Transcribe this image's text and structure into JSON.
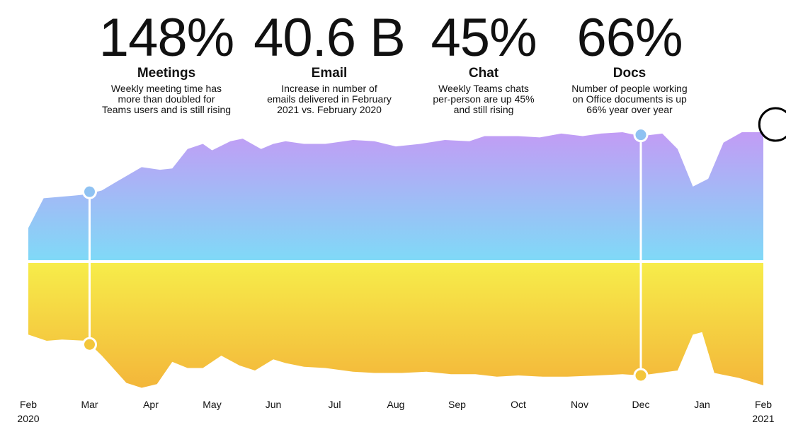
{
  "stats": [
    {
      "value": "148%",
      "label": "Meetings",
      "desc": [
        "Weekly meeting time has",
        "more than doubled for",
        "Teams users and is still rising"
      ]
    },
    {
      "value": "40.6 B",
      "label": "Email",
      "desc": [
        "Increase in number of",
        "emails delivered in February",
        "2021 vs. February 2020"
      ]
    },
    {
      "value": "45%",
      "label": "Chat",
      "desc": [
        "Weekly Teams chats",
        "per-person are up 45%",
        "and still rising"
      ]
    },
    {
      "value": "66%",
      "label": "Docs",
      "desc": [
        "Number of people working",
        "on Office documents is up",
        "66% year over year"
      ]
    }
  ],
  "chart_data": {
    "type": "area",
    "x_labels": [
      "Feb",
      "Mar",
      "Apr",
      "May",
      "Jun",
      "Jul",
      "Aug",
      "Sep",
      "Oct",
      "Nov",
      "Dec",
      "Jan",
      "Feb"
    ],
    "x_sublabels": {
      "first": "2020",
      "last": "2021"
    },
    "x_range": [
      0,
      12
    ],
    "series": [
      {
        "colors": [
          "#c29cf5",
          "#7fdaf7"
        ],
        "values": [
          [
            0,
            0.26
          ],
          [
            0.25,
            0.49
          ],
          [
            0.5,
            0.5
          ],
          [
            0.75,
            0.51
          ],
          [
            0.95,
            0.52
          ],
          [
            1.2,
            0.55
          ],
          [
            1.45,
            0.62
          ],
          [
            1.85,
            0.73
          ],
          [
            2.15,
            0.71
          ],
          [
            2.35,
            0.72
          ],
          [
            2.6,
            0.87
          ],
          [
            2.85,
            0.91
          ],
          [
            3.0,
            0.86
          ],
          [
            3.3,
            0.93
          ],
          [
            3.5,
            0.95
          ],
          [
            3.8,
            0.87
          ],
          [
            4.0,
            0.91
          ],
          [
            4.2,
            0.93
          ],
          [
            4.5,
            0.91
          ],
          [
            4.85,
            0.91
          ],
          [
            5.3,
            0.94
          ],
          [
            5.65,
            0.93
          ],
          [
            6.0,
            0.89
          ],
          [
            6.4,
            0.91
          ],
          [
            6.8,
            0.94
          ],
          [
            7.2,
            0.93
          ],
          [
            7.45,
            0.97
          ],
          [
            8.0,
            0.97
          ],
          [
            8.35,
            0.96
          ],
          [
            8.7,
            0.99
          ],
          [
            9.05,
            0.97
          ],
          [
            9.35,
            0.99
          ],
          [
            9.7,
            1.0
          ],
          [
            10.0,
            0.97
          ],
          [
            10.35,
            0.99
          ],
          [
            10.6,
            0.87
          ],
          [
            10.85,
            0.58
          ],
          [
            11.1,
            0.64
          ],
          [
            11.35,
            0.92
          ],
          [
            11.65,
            1.0
          ],
          [
            12.0,
            1.0
          ]
        ]
      },
      {
        "colors": [
          "#f7ed4a",
          "#f3b63a"
        ],
        "values": [
          [
            0,
            0.59
          ],
          [
            0.3,
            0.64
          ],
          [
            0.55,
            0.63
          ],
          [
            0.95,
            0.64
          ],
          [
            1.2,
            0.76
          ],
          [
            1.6,
            0.98
          ],
          [
            1.85,
            1.02
          ],
          [
            2.1,
            0.99
          ],
          [
            2.35,
            0.81
          ],
          [
            2.6,
            0.86
          ],
          [
            2.85,
            0.86
          ],
          [
            3.15,
            0.76
          ],
          [
            3.45,
            0.84
          ],
          [
            3.7,
            0.88
          ],
          [
            4.0,
            0.79
          ],
          [
            4.2,
            0.82
          ],
          [
            4.5,
            0.85
          ],
          [
            4.85,
            0.86
          ],
          [
            5.3,
            0.89
          ],
          [
            5.65,
            0.9
          ],
          [
            6.1,
            0.9
          ],
          [
            6.5,
            0.89
          ],
          [
            6.9,
            0.91
          ],
          [
            7.3,
            0.91
          ],
          [
            7.65,
            0.93
          ],
          [
            8.0,
            0.92
          ],
          [
            8.4,
            0.93
          ],
          [
            8.8,
            0.93
          ],
          [
            9.3,
            0.92
          ],
          [
            9.7,
            0.91
          ],
          [
            10.0,
            0.92
          ],
          [
            10.3,
            0.9
          ],
          [
            10.6,
            0.88
          ],
          [
            10.85,
            0.59
          ],
          [
            11.0,
            0.57
          ],
          [
            11.2,
            0.9
          ],
          [
            11.6,
            0.94
          ],
          [
            12.0,
            1.0
          ]
        ]
      }
    ],
    "markers": [
      {
        "x": 1.0,
        "top": 0.54,
        "bottom": 0.67
      },
      {
        "x": 10.0,
        "top": 0.98,
        "bottom": 0.92
      }
    ],
    "highlight_x": 12.2,
    "highlight_top": 1.0
  }
}
